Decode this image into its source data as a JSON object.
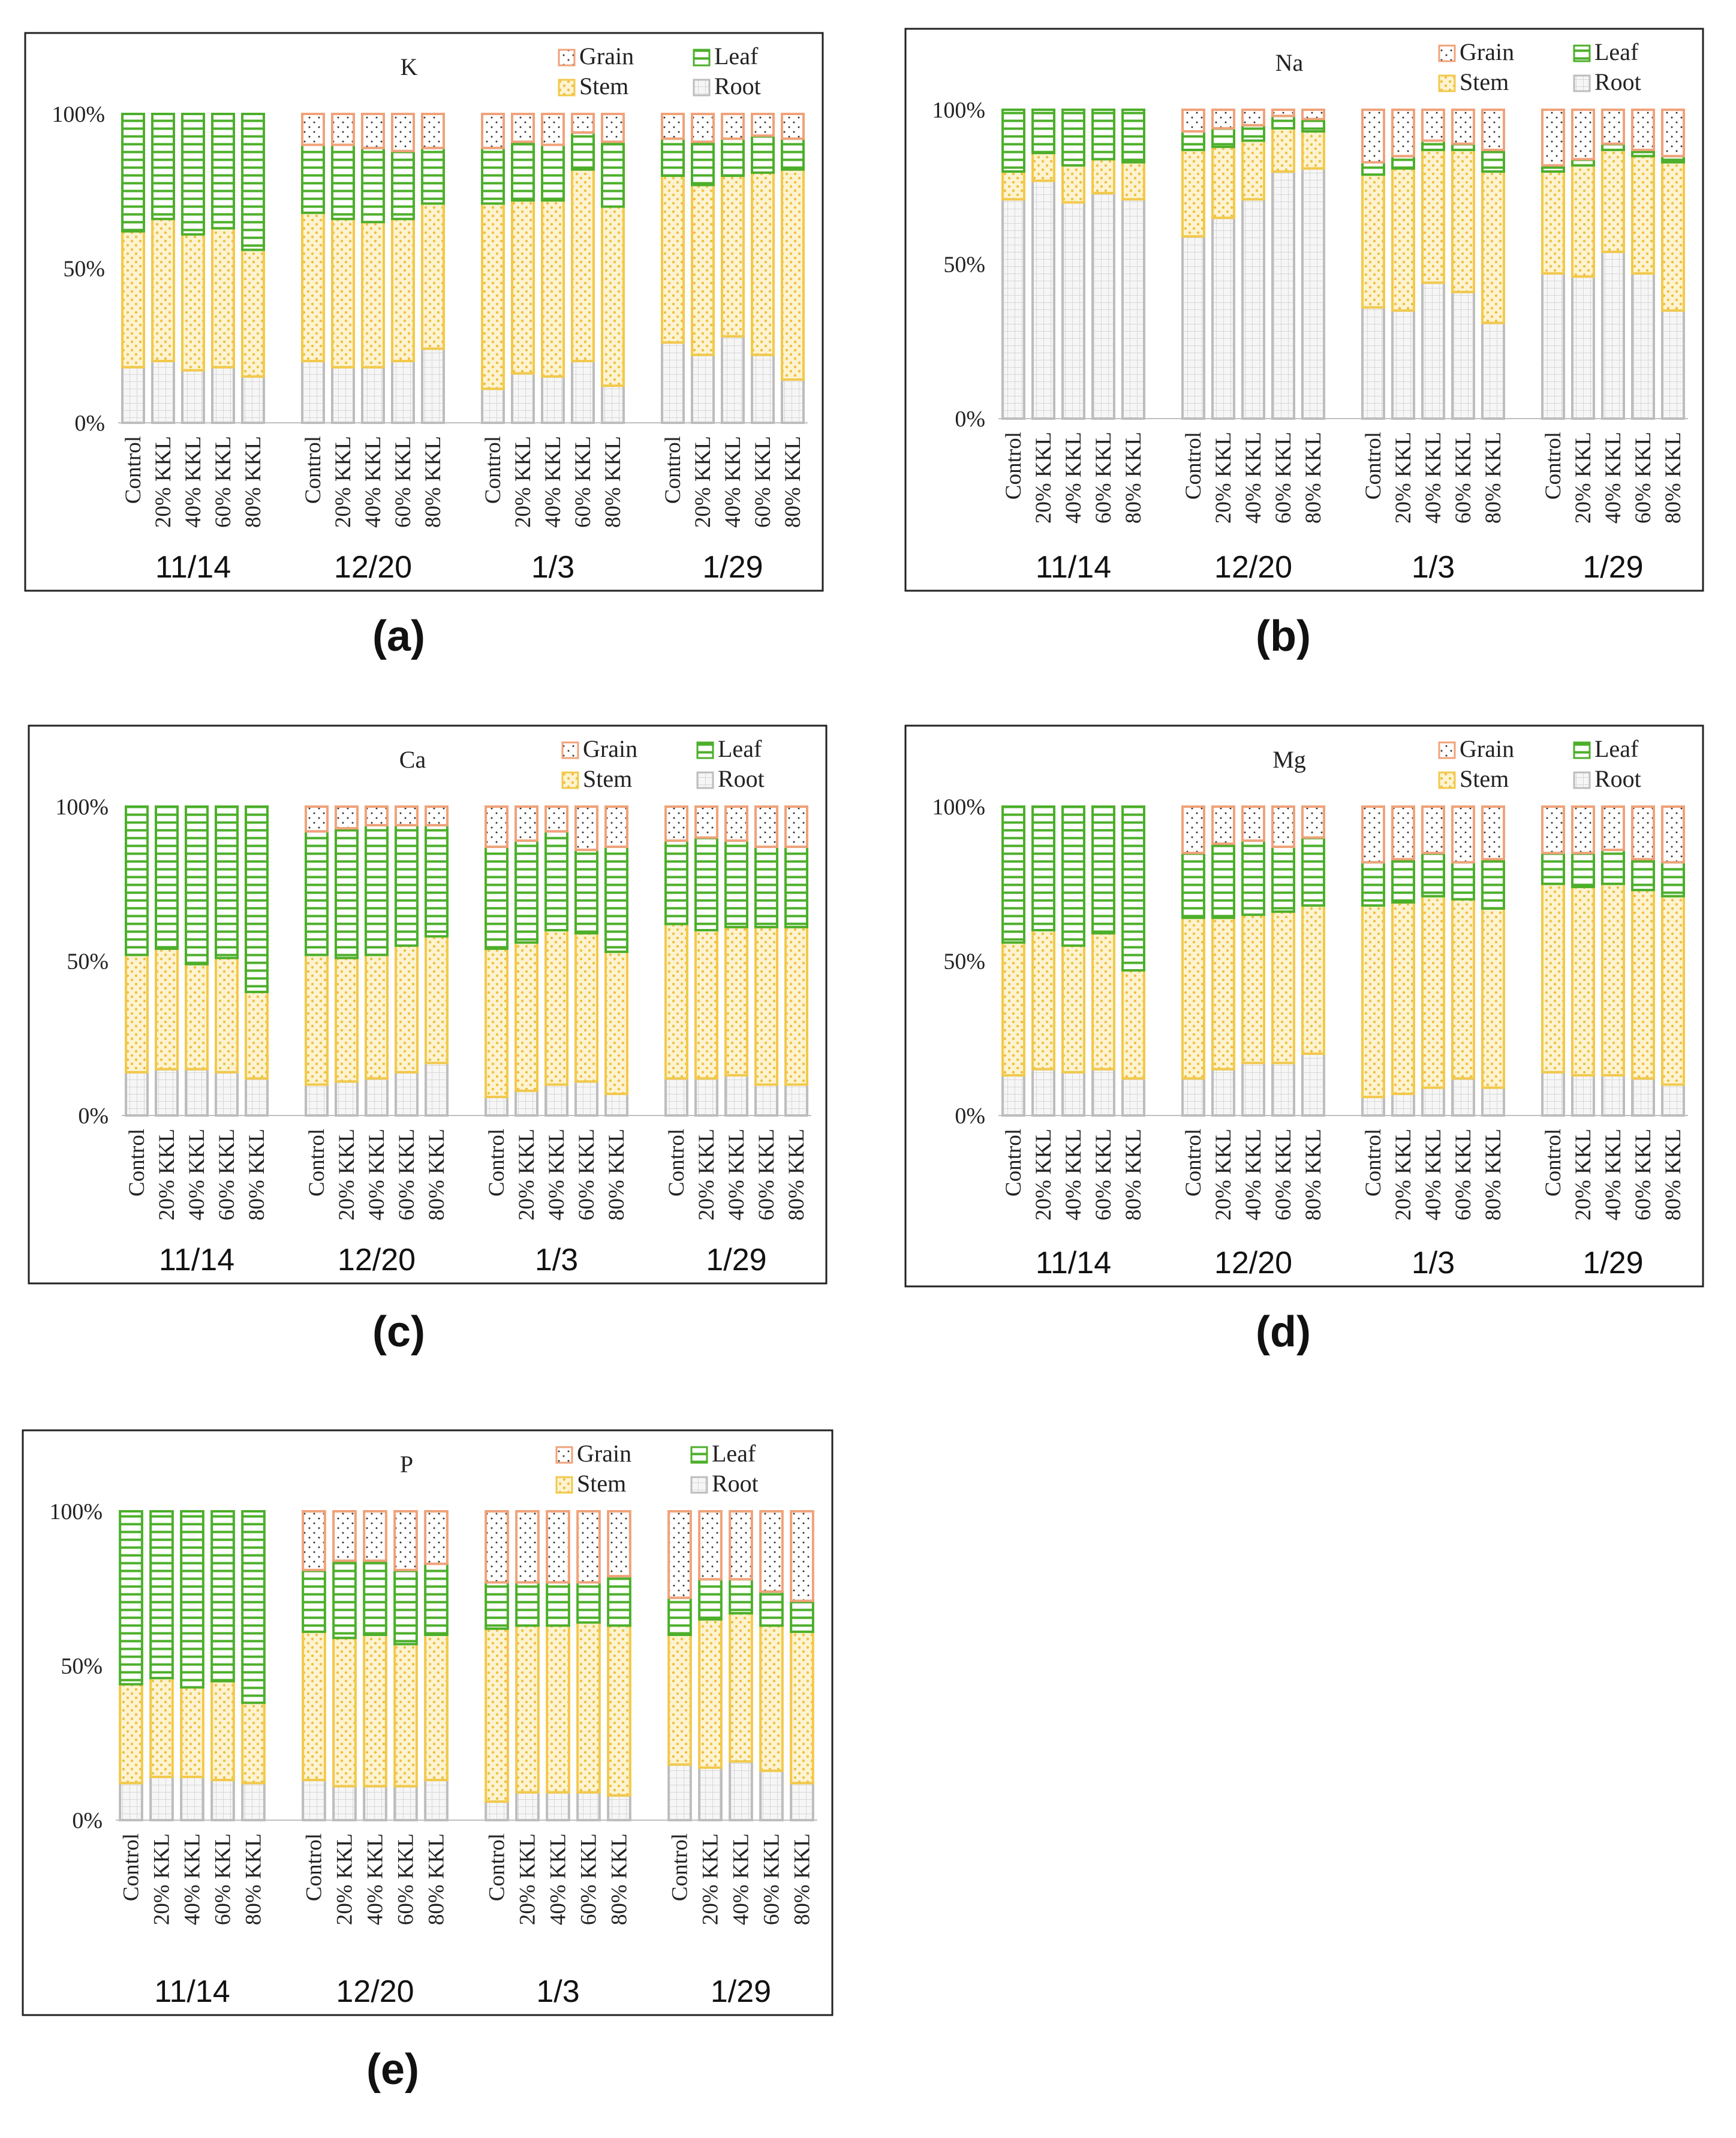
{
  "colors": {
    "root": "#bdbdbd",
    "root_fill": "#f5f5f5",
    "stem": "#f2c94c",
    "stem_fill": "#fdf4d3",
    "stem_dot": "#f0c040",
    "leaf": "#4caf2a",
    "leaf_fill": "#ffffff",
    "grain": "#f0a27a",
    "grain_fill": "#ffffff",
    "grain_dot": "#333333",
    "frame": "#222222",
    "axis": "#bfbfbf"
  },
  "chart_data": [
    {
      "panel_label": "(a)",
      "title": "K",
      "type": "bar",
      "stacked": true,
      "normalized_percent": true,
      "y_ticks": [
        "0%",
        "50%",
        "100%"
      ],
      "ylim": [
        0,
        100
      ],
      "legend": {
        "placement": "top-right",
        "entries": [
          "Grain",
          "Leaf",
          "Stem",
          "Root"
        ]
      },
      "categories": [
        "Control",
        "20% KKL",
        "40% KKL",
        "60% KKL",
        "80% KKL"
      ],
      "dates": [
        "11/14",
        "12/20",
        "1/3",
        "1/29"
      ],
      "series_order": [
        "Root",
        "Stem",
        "Leaf",
        "Grain"
      ],
      "groups": [
        {
          "date": "11/14",
          "values": {
            "Root": [
              18,
              20,
              17,
              18,
              15
            ],
            "Stem": [
              44,
              46,
              44,
              45,
              41
            ],
            "Leaf": [
              38,
              34,
              39,
              37,
              44
            ],
            "Grain": [
              0,
              0,
              0,
              0,
              0
            ]
          }
        },
        {
          "date": "12/20",
          "values": {
            "Root": [
              20,
              18,
              18,
              20,
              24
            ],
            "Stem": [
              48,
              48,
              47,
              46,
              47
            ],
            "Leaf": [
              22,
              24,
              24,
              22,
              18
            ],
            "Grain": [
              10,
              10,
              11,
              12,
              11
            ]
          }
        },
        {
          "date": "1/3",
          "values": {
            "Root": [
              11,
              16,
              15,
              20,
              12
            ],
            "Stem": [
              60,
              56,
              57,
              62,
              58
            ],
            "Leaf": [
              18,
              19,
              18,
              12,
              21
            ],
            "Grain": [
              11,
              9,
              10,
              6,
              9
            ]
          }
        },
        {
          "date": "1/29",
          "values": {
            "Root": [
              26,
              22,
              28,
              22,
              14
            ],
            "Stem": [
              54,
              55,
              52,
              59,
              68
            ],
            "Leaf": [
              12,
              14,
              12,
              12,
              10
            ],
            "Grain": [
              8,
              9,
              8,
              7,
              8
            ]
          }
        }
      ]
    },
    {
      "panel_label": "(b)",
      "title": "Na",
      "type": "bar",
      "stacked": true,
      "normalized_percent": true,
      "y_ticks": [
        "0%",
        "50%",
        "100%"
      ],
      "ylim": [
        0,
        100
      ],
      "legend": {
        "placement": "top-right",
        "entries": [
          "Grain",
          "Leaf",
          "Stem",
          "Root"
        ]
      },
      "categories": [
        "Control",
        "20% KKL",
        "40% KKL",
        "60% KKL",
        "80% KKL"
      ],
      "dates": [
        "11/14",
        "12/20",
        "1/3",
        "1/29"
      ],
      "series_order": [
        "Root",
        "Stem",
        "Leaf",
        "Grain"
      ],
      "groups": [
        {
          "date": "11/14",
          "values": {
            "Root": [
              71,
              77,
              70,
              73,
              71
            ],
            "Stem": [
              9,
              9,
              12,
              11,
              12
            ],
            "Leaf": [
              20,
              14,
              18,
              16,
              17
            ],
            "Grain": [
              0,
              0,
              0,
              0,
              0
            ]
          }
        },
        {
          "date": "12/20",
          "values": {
            "Root": [
              59,
              65,
              71,
              80,
              81
            ],
            "Stem": [
              28,
              23,
              19,
              14,
              12
            ],
            "Leaf": [
              6,
              6,
              5,
              4,
              4
            ],
            "Grain": [
              7,
              6,
              5,
              2,
              3
            ]
          }
        },
        {
          "date": "1/3",
          "values": {
            "Root": [
              36,
              35,
              44,
              41,
              31
            ],
            "Stem": [
              43,
              46,
              43,
              46,
              49
            ],
            "Leaf": [
              4,
              4,
              3,
              2,
              7
            ],
            "Grain": [
              17,
              15,
              10,
              11,
              13
            ]
          }
        },
        {
          "date": "1/29",
          "values": {
            "Root": [
              47,
              46,
              54,
              47,
              35
            ],
            "Stem": [
              33,
              36,
              33,
              38,
              48
            ],
            "Leaf": [
              2,
              2,
              2,
              2,
              2
            ],
            "Grain": [
              18,
              16,
              11,
              13,
              15
            ]
          }
        }
      ]
    },
    {
      "panel_label": "(c)",
      "title": "Ca",
      "type": "bar",
      "stacked": true,
      "normalized_percent": true,
      "y_ticks": [
        "0%",
        "50%",
        "100%"
      ],
      "ylim": [
        0,
        100
      ],
      "legend": {
        "placement": "top-right",
        "entries": [
          "Grain",
          "Leaf",
          "Stem",
          "Root"
        ]
      },
      "categories": [
        "Control",
        "20% KKL",
        "40% KKL",
        "60% KKL",
        "80% KKL"
      ],
      "dates": [
        "11/14",
        "12/20",
        "1/3",
        "1/29"
      ],
      "series_order": [
        "Root",
        "Stem",
        "Leaf",
        "Grain"
      ],
      "groups": [
        {
          "date": "11/14",
          "values": {
            "Root": [
              14,
              15,
              15,
              14,
              12
            ],
            "Stem": [
              38,
              39,
              34,
              37,
              28
            ],
            "Leaf": [
              48,
              46,
              51,
              49,
              60
            ],
            "Grain": [
              0,
              0,
              0,
              0,
              0
            ]
          }
        },
        {
          "date": "12/20",
          "values": {
            "Root": [
              10,
              11,
              12,
              14,
              17
            ],
            "Stem": [
              42,
              40,
              40,
              41,
              41
            ],
            "Leaf": [
              40,
              42,
              42,
              39,
              36
            ],
            "Grain": [
              8,
              7,
              6,
              6,
              6
            ]
          }
        },
        {
          "date": "1/3",
          "values": {
            "Root": [
              6,
              8,
              10,
              11,
              7
            ],
            "Stem": [
              48,
              48,
              50,
              48,
              46
            ],
            "Leaf": [
              33,
              33,
              32,
              27,
              34
            ],
            "Grain": [
              13,
              11,
              8,
              14,
              13
            ]
          }
        },
        {
          "date": "1/29",
          "values": {
            "Root": [
              12,
              12,
              13,
              10,
              10
            ],
            "Stem": [
              50,
              48,
              48,
              51,
              51
            ],
            "Leaf": [
              27,
              30,
              28,
              26,
              26
            ],
            "Grain": [
              11,
              10,
              11,
              13,
              13
            ]
          }
        }
      ]
    },
    {
      "panel_label": "(d)",
      "title": "Mg",
      "type": "bar",
      "stacked": true,
      "normalized_percent": true,
      "y_ticks": [
        "0%",
        "50%",
        "100%"
      ],
      "ylim": [
        0,
        100
      ],
      "legend": {
        "placement": "top-right",
        "entries": [
          "Grain",
          "Leaf",
          "Stem",
          "Root"
        ]
      },
      "categories": [
        "Control",
        "20% KKL",
        "40% KKL",
        "60% KKL",
        "80% KKL"
      ],
      "dates": [
        "11/14",
        "12/20",
        "1/3",
        "1/29"
      ],
      "series_order": [
        "Root",
        "Stem",
        "Leaf",
        "Grain"
      ],
      "groups": [
        {
          "date": "11/14",
          "values": {
            "Root": [
              13,
              15,
              14,
              15,
              12
            ],
            "Stem": [
              43,
              45,
              41,
              44,
              35
            ],
            "Leaf": [
              44,
              40,
              45,
              41,
              53
            ],
            "Grain": [
              0,
              0,
              0,
              0,
              0
            ]
          }
        },
        {
          "date": "12/20",
          "values": {
            "Root": [
              12,
              15,
              17,
              17,
              20
            ],
            "Stem": [
              52,
              49,
              48,
              49,
              48
            ],
            "Leaf": [
              21,
              24,
              24,
              21,
              22
            ],
            "Grain": [
              15,
              12,
              11,
              13,
              10
            ]
          }
        },
        {
          "date": "1/3",
          "values": {
            "Root": [
              6,
              7,
              9,
              12,
              9
            ],
            "Stem": [
              62,
              62,
              62,
              58,
              58
            ],
            "Leaf": [
              14,
              14,
              14,
              12,
              16
            ],
            "Grain": [
              18,
              17,
              15,
              18,
              17
            ]
          }
        },
        {
          "date": "1/29",
          "values": {
            "Root": [
              14,
              13,
              13,
              12,
              10
            ],
            "Stem": [
              61,
              61,
              62,
              61,
              61
            ],
            "Leaf": [
              10,
              11,
              11,
              10,
              11
            ],
            "Grain": [
              15,
              15,
              14,
              17,
              18
            ]
          }
        }
      ]
    },
    {
      "panel_label": "(e)",
      "title": "P",
      "type": "bar",
      "stacked": true,
      "normalized_percent": true,
      "y_ticks": [
        "0%",
        "50%",
        "100%"
      ],
      "ylim": [
        0,
        100
      ],
      "legend": {
        "placement": "top-right",
        "entries": [
          "Grain",
          "Leaf",
          "Stem",
          "Root"
        ]
      },
      "categories": [
        "Control",
        "20% KKL",
        "40% KKL",
        "60% KKL",
        "80% KKL"
      ],
      "dates": [
        "11/14",
        "12/20",
        "1/3",
        "1/29"
      ],
      "series_order": [
        "Root",
        "Stem",
        "Leaf",
        "Grain"
      ],
      "groups": [
        {
          "date": "11/14",
          "values": {
            "Root": [
              12,
              14,
              14,
              13,
              12
            ],
            "Stem": [
              32,
              32,
              29,
              32,
              26
            ],
            "Leaf": [
              56,
              54,
              57,
              55,
              62
            ],
            "Grain": [
              0,
              0,
              0,
              0,
              0
            ]
          }
        },
        {
          "date": "12/20",
          "values": {
            "Root": [
              13,
              11,
              11,
              11,
              13
            ],
            "Stem": [
              48,
              48,
              49,
              46,
              47
            ],
            "Leaf": [
              20,
              25,
              24,
              24,
              23
            ],
            "Grain": [
              19,
              16,
              16,
              19,
              17
            ]
          }
        },
        {
          "date": "1/3",
          "values": {
            "Root": [
              6,
              9,
              9,
              9,
              8
            ],
            "Stem": [
              56,
              54,
              54,
              55,
              55
            ],
            "Leaf": [
              15,
              14,
              14,
              13,
              16
            ],
            "Grain": [
              23,
              23,
              23,
              23,
              21
            ]
          }
        },
        {
          "date": "1/29",
          "values": {
            "Root": [
              18,
              17,
              19,
              16,
              12
            ],
            "Stem": [
              42,
              48,
              48,
              47,
              49
            ],
            "Leaf": [
              12,
              13,
              11,
              11,
              10
            ],
            "Grain": [
              28,
              22,
              22,
              26,
              29
            ]
          }
        }
      ]
    }
  ]
}
